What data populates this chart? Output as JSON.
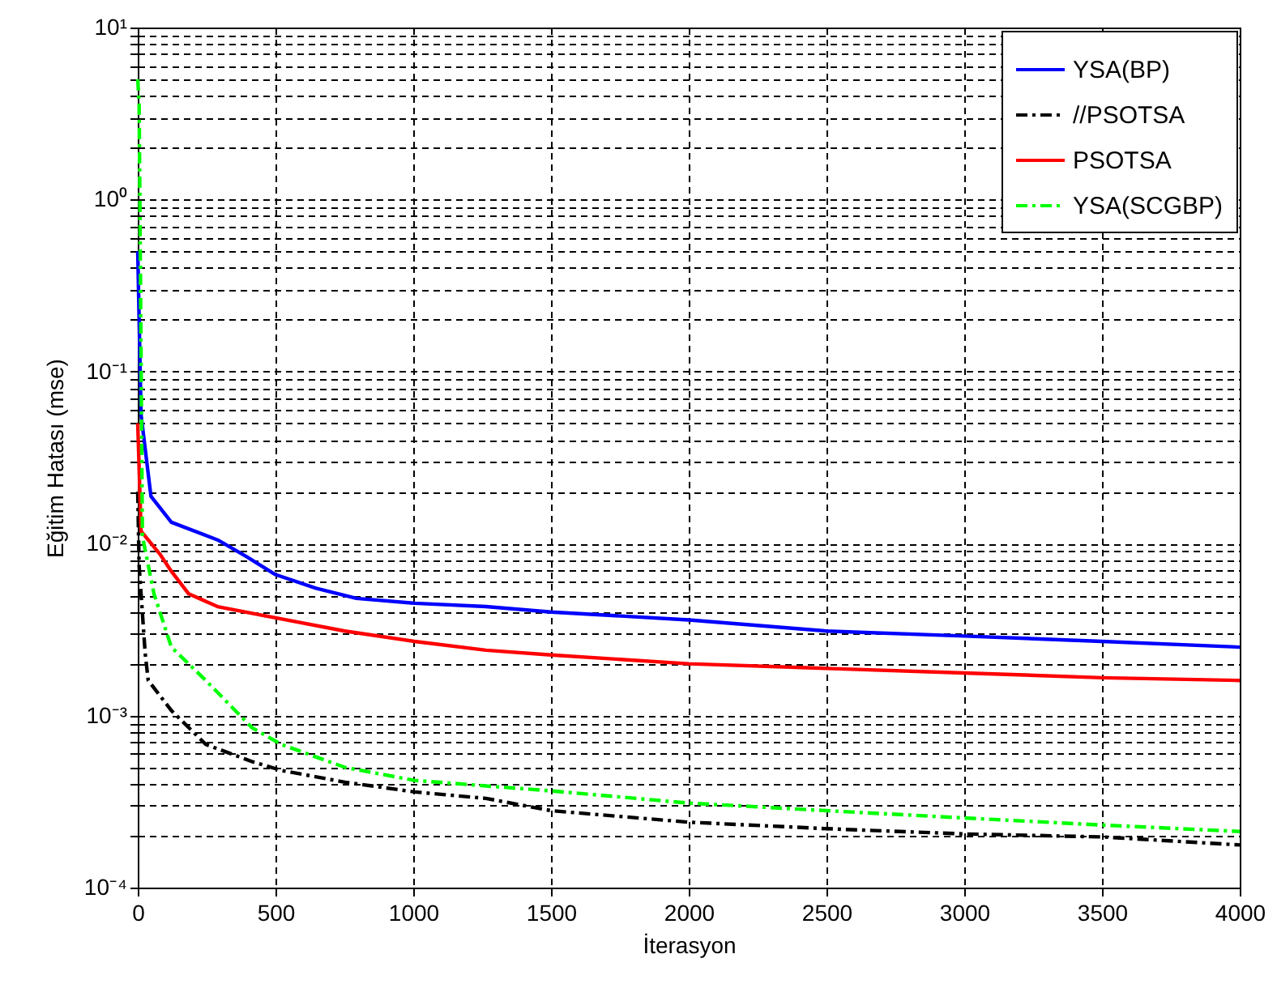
{
  "chart_data": {
    "type": "line",
    "xlabel": "İterasyon",
    "ylabel": "Eğitim Hatası (mse)",
    "log": "y",
    "grid": true,
    "legend": "top right",
    "xlim": [
      0,
      4000
    ],
    "xticks": [
      0,
      500,
      1000,
      1500,
      2000,
      2500,
      3000,
      3500,
      4000
    ],
    "ylim": [
      0.0001,
      10
    ],
    "yticks": [
      {
        "value": 0.0001,
        "label": "10⁻⁴"
      },
      {
        "value": 0.001,
        "label": "10⁻³"
      },
      {
        "value": 0.01,
        "label": "10⁻²"
      },
      {
        "value": 0.1,
        "label": "10⁻¹"
      },
      {
        "value": 1,
        "label": "10⁰"
      },
      {
        "value": 10,
        "label": "10¹"
      }
    ],
    "series": [
      {
        "name": "YSA(BP)",
        "color": "#0000ff",
        "line_style": "solid",
        "x": [
          0,
          12,
          48,
          122,
          290,
          395,
          500,
          647,
          794,
          1004,
          1264,
          1500,
          2000,
          2500,
          3000,
          3500,
          4000
        ],
        "values": [
          0.5,
          0.056,
          0.0188,
          0.0133,
          0.0105,
          0.0084,
          0.0066,
          0.0055,
          0.0048,
          0.0045,
          0.0043,
          0.004,
          0.0036,
          0.0031,
          0.0029,
          0.0027,
          0.0025
        ]
      },
      {
        "name": "//PSOTSA",
        "color": "#000000",
        "line_style": "dashed",
        "x": [
          0,
          5,
          27,
          38,
          122,
          247,
          415,
          521,
          752,
          1004,
          1264,
          1500,
          2000,
          2500,
          3000,
          3500,
          4000
        ],
        "values": [
          0.02,
          0.0074,
          0.0023,
          0.0016,
          0.00107,
          0.00068,
          0.00054,
          0.00048,
          0.00041,
          0.00036,
          0.00033,
          0.00028,
          0.00024,
          0.00022,
          0.000205,
          0.000197,
          0.000177
        ]
      },
      {
        "name": "PSOTSA",
        "color": "#ff0000",
        "line_style": "solid",
        "x": [
          0,
          12,
          80,
          122,
          185,
          290,
          500,
          752,
          1004,
          1264,
          1500,
          2000,
          2500,
          3000,
          3500,
          4000
        ],
        "values": [
          0.05,
          0.0118,
          0.0087,
          0.0069,
          0.0051,
          0.0043,
          0.0037,
          0.0031,
          0.0027,
          0.0024,
          0.00225,
          0.002,
          0.00188,
          0.00177,
          0.00166,
          0.0016
        ]
      },
      {
        "name": "YSA(SCGBP)",
        "color": "#00ff00",
        "line_style": "dashed",
        "x": [
          0,
          5,
          17,
          59,
          122,
          247,
          415,
          521,
          752,
          1004,
          1264,
          1500,
          2000,
          2500,
          3000,
          3500,
          4000
        ],
        "values": [
          5,
          3.6,
          0.011,
          0.0051,
          0.0025,
          0.0016,
          0.00085,
          0.00068,
          0.0005,
          0.00042,
          0.00039,
          0.000365,
          0.00031,
          0.00028,
          0.000254,
          0.000231,
          0.000212
        ]
      }
    ]
  }
}
